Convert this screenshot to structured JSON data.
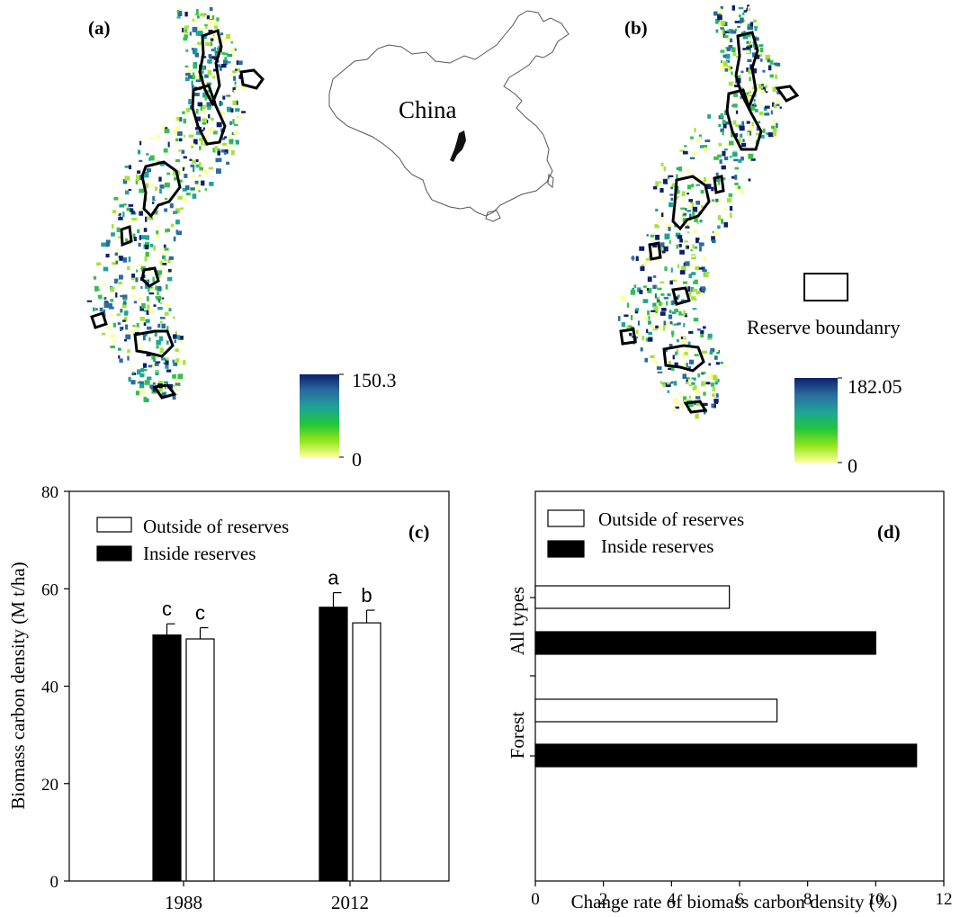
{
  "panel_labels": {
    "a": "(a)",
    "b": "(b)",
    "c": "(c)",
    "d": "(d)"
  },
  "map_panels": {
    "china_label": "China",
    "legend_boundary": "Reserve boundanry",
    "map_a": {
      "colorbar_max": "150.3",
      "colorbar_min": "0"
    },
    "map_b": {
      "colorbar_max": "182.05",
      "colorbar_min": "0"
    },
    "colorbar_colors": [
      "#0d1f6e",
      "#2a6ca0",
      "#1fa39a",
      "#20c63a",
      "#92e51a",
      "#ffff9a"
    ],
    "map_colors": [
      "#ffff9a",
      "#a6e23a",
      "#36c04a",
      "#1fa39a",
      "#2a6ca0",
      "#0d1f6e"
    ]
  },
  "chart_data": [
    {
      "type": "bar",
      "panel": "(c)",
      "categories": [
        "1988",
        "2012"
      ],
      "series": [
        {
          "name": "Inside reserves",
          "values": [
            50.5,
            56.2
          ],
          "errors": [
            2.3,
            3.0
          ],
          "letters": [
            "c",
            "a"
          ],
          "color": "#000000"
        },
        {
          "name": "Outside of reserves",
          "values": [
            49.7,
            53.0
          ],
          "errors": [
            2.3,
            2.6
          ],
          "letters": [
            "c",
            "b"
          ],
          "color": "#ffffff"
        }
      ],
      "legend_order": [
        "Outside of reserves",
        "Inside reserves"
      ],
      "xlabel": "",
      "ylabel": "Biomass carbon density (M t/ha)",
      "ylim": [
        0,
        80
      ],
      "yticks": [
        0,
        20,
        40,
        60,
        80
      ],
      "grid": false,
      "legend_position": "top-left"
    },
    {
      "type": "bar",
      "orientation": "horizontal",
      "panel": "(d)",
      "categories": [
        "All types",
        "Forest"
      ],
      "series": [
        {
          "name": "Outside of reserves",
          "values": [
            5.7,
            7.1
          ],
          "color": "#ffffff"
        },
        {
          "name": "Inside reserves",
          "values": [
            10.0,
            11.2
          ],
          "color": "#000000"
        }
      ],
      "xlabel": "Change rate of biomass carbon density (%)",
      "ylabel": "",
      "xlim": [
        0,
        12
      ],
      "xticks": [
        0,
        2,
        4,
        6,
        8,
        10,
        12
      ],
      "grid": false,
      "legend_position": "top-left"
    }
  ]
}
